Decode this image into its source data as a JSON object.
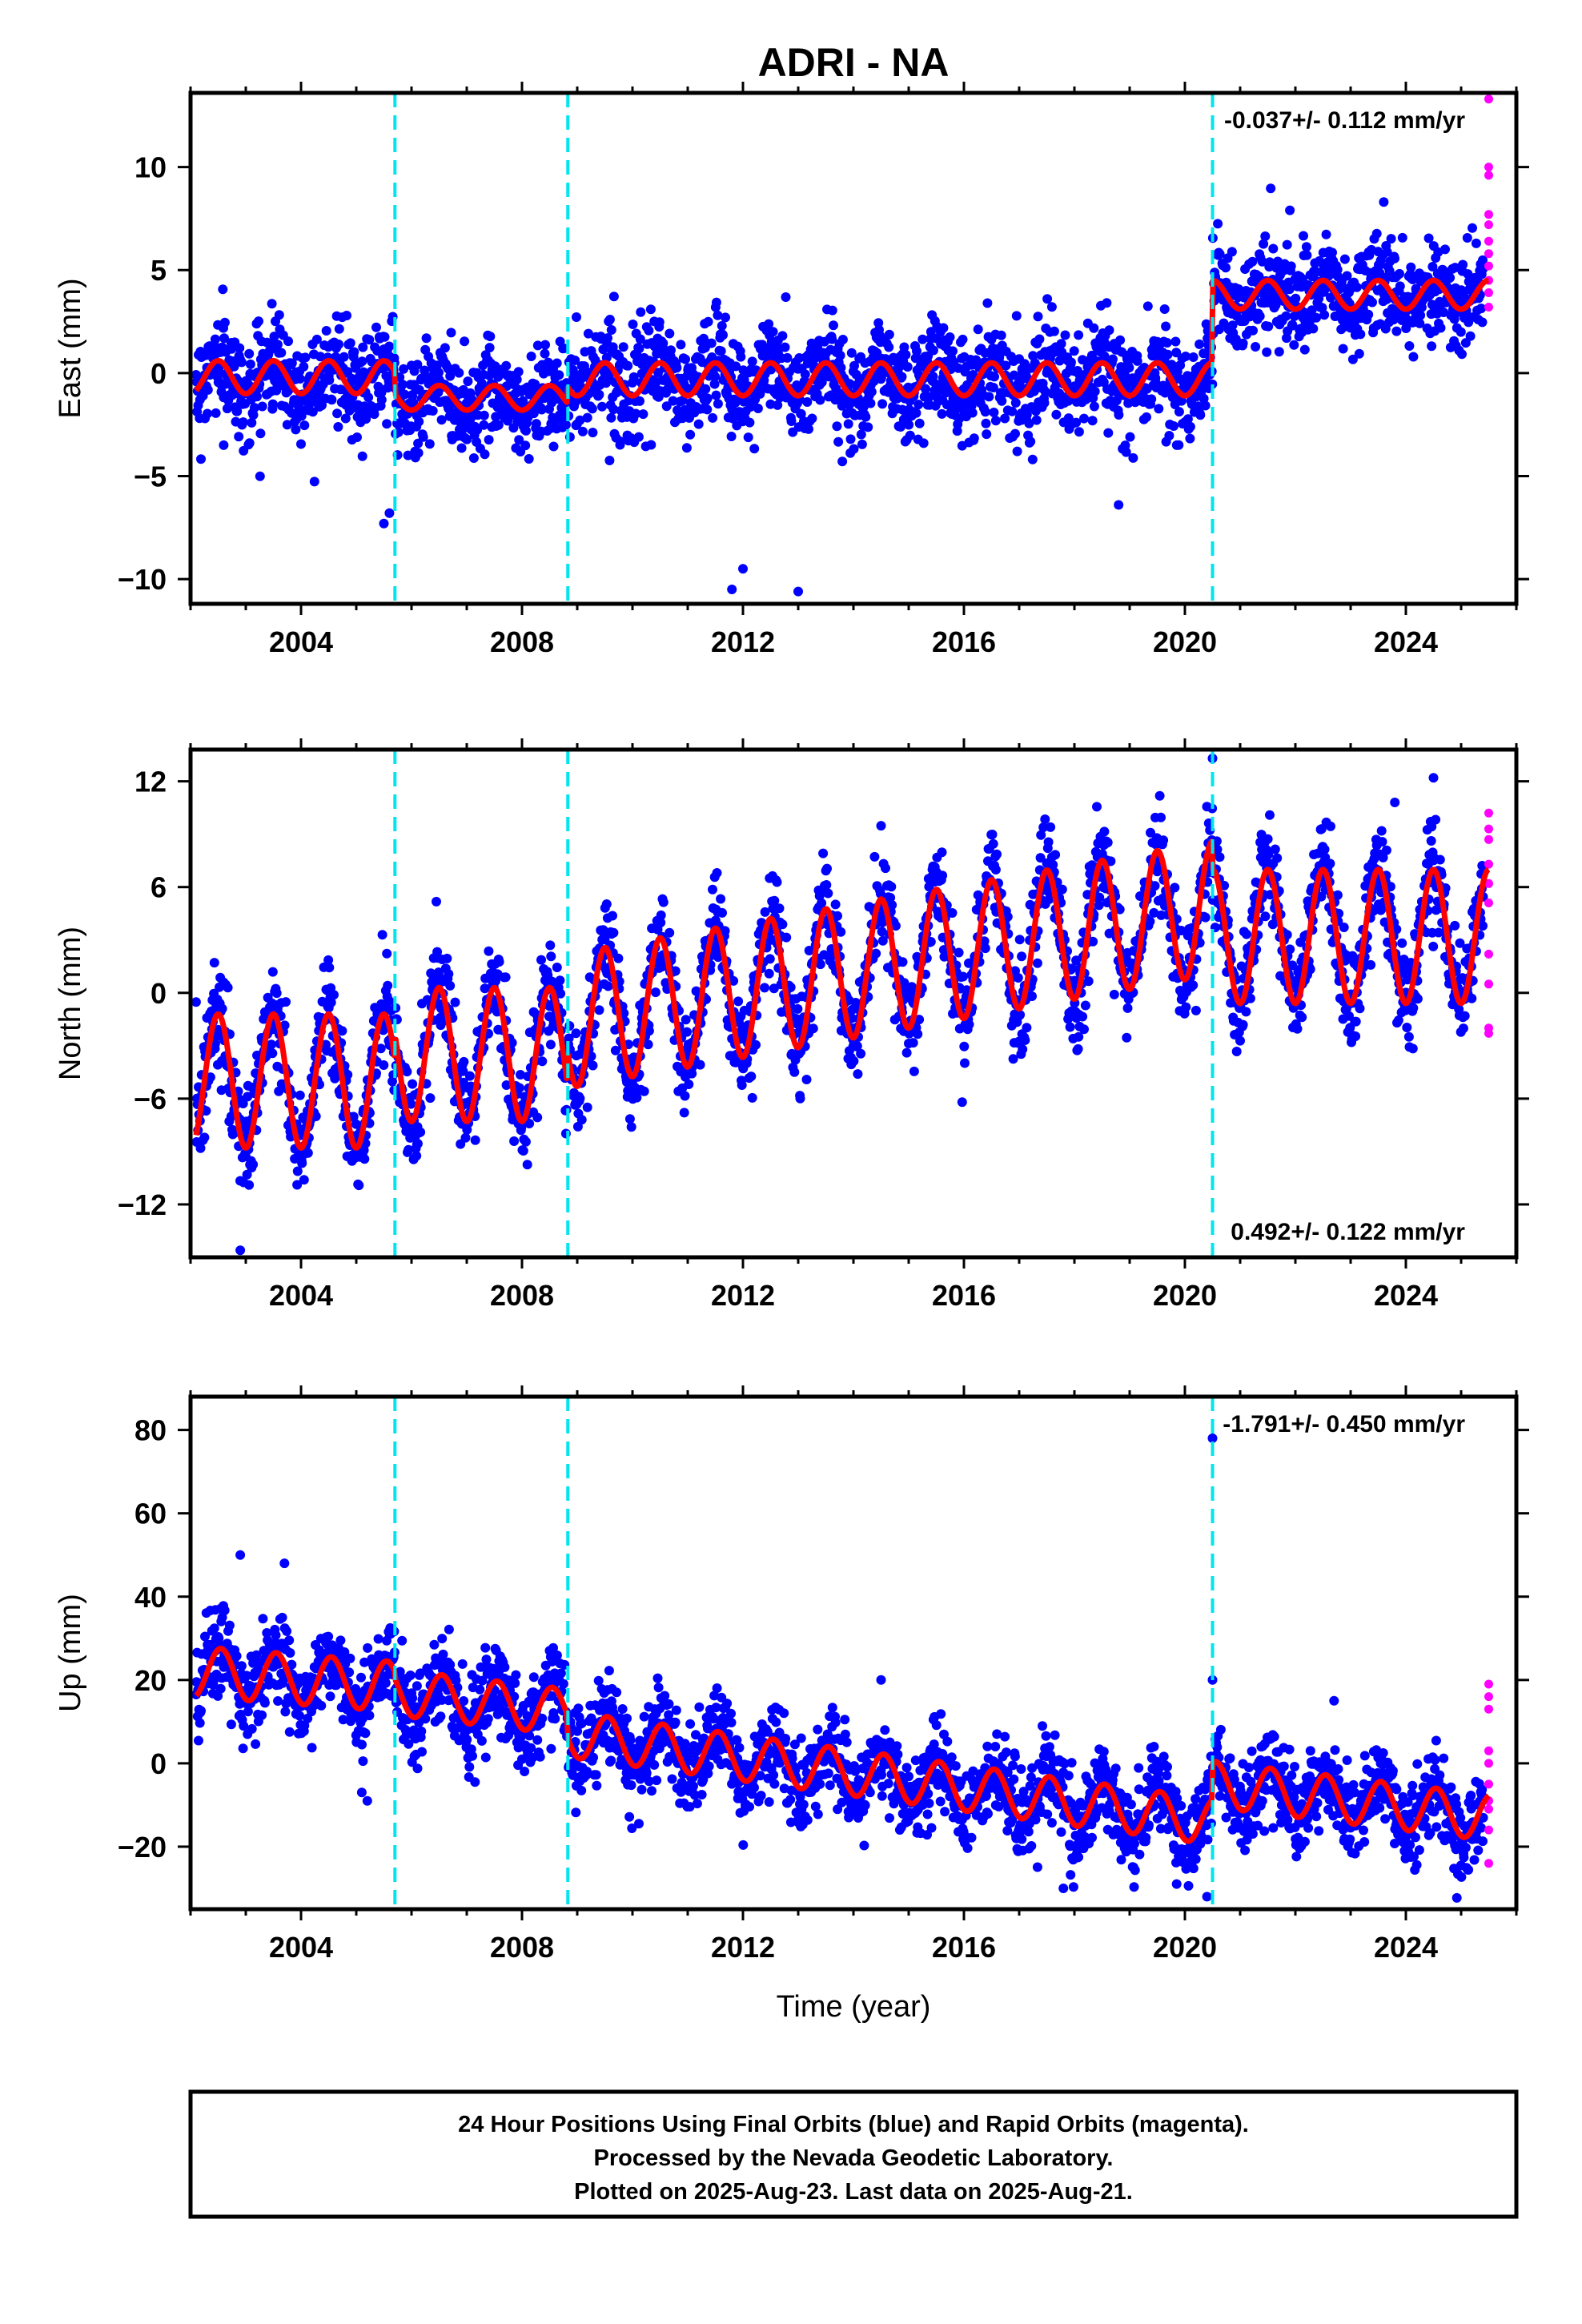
{
  "title": "ADRI - NA",
  "colors": {
    "final_orbits": "#0000ff",
    "rapid_orbits": "#ff00ff",
    "model_fit": "#ff0000",
    "offset_lines": "#00e5ee"
  },
  "chart_data": [
    {
      "type": "scatter",
      "panel": "east",
      "ylabel": "East (mm)",
      "rate_text": "-0.037+/- 0.112 mm/yr",
      "rate_position": "top-right",
      "xlim": [
        2002.0,
        2026.0
      ],
      "ylim": [
        -11.2,
        13.6
      ],
      "yticks": [
        10,
        5,
        0,
        -5,
        -10
      ],
      "ytick_labels": [
        "10",
        "5",
        "0",
        "−5",
        "−10"
      ],
      "xticks": [
        2004,
        2008,
        2012,
        2016,
        2020,
        2024
      ],
      "xtick_labels": [
        "2004",
        "2008",
        "2012",
        "2016",
        "2020",
        "2024"
      ],
      "offset_epochs": [
        2005.7,
        2008.83,
        2020.5
      ],
      "data_span": [
        2002.1,
        2025.4
      ],
      "series": [
        {
          "name": "Final Orbits (blue)",
          "kind": "daily positions",
          "scatter_sd": 1.2
        },
        {
          "name": "Rapid Orbits (magenta)",
          "kind": "daily positions",
          "x": [
            2025.5,
            2025.5,
            2025.5,
            2025.5,
            2025.5,
            2025.5,
            2025.5,
            2025.5,
            2025.5,
            2025.5,
            2025.5
          ],
          "y": [
            13.3,
            10.0,
            9.6,
            7.7,
            7.2,
            6.4,
            5.8,
            5.2,
            4.5,
            3.9,
            3.2
          ]
        },
        {
          "name": "Model fit",
          "segments": [
            {
              "start": 2002.1,
              "end": 2005.7,
              "offset": -0.2,
              "annual_amp": 0.8
            },
            {
              "start": 2005.7,
              "end": 2008.83,
              "offset": -1.2,
              "annual_amp": 0.6
            },
            {
              "start": 2008.83,
              "end": 2020.5,
              "offset": -0.3,
              "annual_amp": 0.8
            },
            {
              "start": 2020.5,
              "end": 2025.5,
              "offset": 3.8,
              "annual_amp": 0.7
            }
          ],
          "phase_peak": 0.5
        }
      ],
      "outliers": {
        "x": [
          2002.6,
          2005.5,
          2005.6,
          2011.8,
          2012.0,
          2013.0,
          2018.8,
          2021.9,
          2023.6
        ],
        "y": [
          -3.5,
          -7.3,
          -6.8,
          -10.5,
          -9.5,
          -10.6,
          -6.4,
          7.9,
          8.3
        ]
      }
    },
    {
      "type": "scatter",
      "panel": "north",
      "ylabel": "North (mm)",
      "rate_text": "0.492+/- 0.122 mm/yr",
      "rate_position": "bottom-right",
      "xlim": [
        2002.0,
        2026.0
      ],
      "ylim": [
        -15.0,
        13.8
      ],
      "yticks": [
        12,
        6,
        0,
        -6,
        -12
      ],
      "ytick_labels": [
        "12",
        "6",
        "0",
        "−6",
        "−12"
      ],
      "xticks": [
        2004,
        2008,
        2012,
        2016,
        2020,
        2024
      ],
      "xtick_labels": [
        "2004",
        "2008",
        "2012",
        "2016",
        "2020",
        "2024"
      ],
      "offset_epochs": [
        2005.7,
        2008.83,
        2020.5
      ],
      "data_span": [
        2002.1,
        2025.4
      ],
      "series": [
        {
          "name": "Final Orbits (blue)",
          "kind": "daily positions",
          "scatter_sd": 1.4
        },
        {
          "name": "Rapid Orbits (magenta)",
          "kind": "daily positions",
          "x": [
            2025.5,
            2025.5,
            2025.5,
            2025.5,
            2025.5,
            2025.5,
            2025.5,
            2025.5,
            2025.5,
            2025.5
          ],
          "y": [
            10.2,
            9.3,
            8.7,
            7.3,
            6.2,
            5.1,
            2.2,
            0.5,
            -2.0,
            -2.3
          ]
        },
        {
          "name": "Model fit",
          "segments": [
            {
              "start": 2002.1,
              "end": 2005.7,
              "offset": -5.0,
              "annual_amp": 3.8,
              "trend_mm_per_yr": 0.0
            },
            {
              "start": 2005.7,
              "end": 2008.83,
              "offset": -3.5,
              "annual_amp": 3.8,
              "trend_mm_per_yr": 0.0
            },
            {
              "start": 2008.83,
              "end": 2020.5,
              "offset": -1.6,
              "annual_amp": 3.8,
              "trend_mm_per_yr": 0.55
            },
            {
              "start": 2020.5,
              "end": 2025.5,
              "offset": 3.2,
              "annual_amp": 3.8,
              "trend_mm_per_yr": 0.0
            }
          ],
          "phase_peak": 0.5
        }
      ],
      "outliers": {
        "x": [
          2002.9,
          2020.5,
          2024.5,
          2023.8
        ],
        "y": [
          -14.6,
          13.3,
          12.2,
          10.8
        ]
      }
    },
    {
      "type": "scatter",
      "panel": "up",
      "ylabel": "Up (mm)",
      "xlabel": "Time (year)",
      "rate_text": "-1.791+/- 0.450 mm/yr",
      "rate_position": "top-right",
      "xlim": [
        2002.0,
        2026.0
      ],
      "ylim": [
        -35,
        88
      ],
      "yticks": [
        80,
        60,
        40,
        20,
        0,
        -20
      ],
      "ytick_labels": [
        "80",
        "60",
        "40",
        "20",
        "0",
        "−20"
      ],
      "xticks": [
        2004,
        2008,
        2012,
        2016,
        2020,
        2024
      ],
      "xtick_labels": [
        "2004",
        "2008",
        "2012",
        "2016",
        "2020",
        "2024"
      ],
      "offset_epochs": [
        2005.7,
        2008.83,
        2020.5
      ],
      "data_span": [
        2002.1,
        2025.4
      ],
      "series": [
        {
          "name": "Final Orbits (blue)",
          "kind": "daily positions",
          "scatter_sd": 5.0
        },
        {
          "name": "Rapid Orbits (magenta)",
          "kind": "daily positions",
          "x": [
            2025.5,
            2025.5,
            2025.5,
            2025.5,
            2025.5,
            2025.5,
            2025.5,
            2025.5,
            2025.5,
            2025.5
          ],
          "y": [
            19,
            16,
            13,
            3,
            0,
            -5,
            -9,
            -11,
            -16,
            -24
          ]
        },
        {
          "name": "Model fit",
          "segments": [
            {
              "start": 2002.1,
              "end": 2005.7,
              "offset": 22.0,
              "annual_amp": 6.0,
              "trend_mm_per_yr": -1.0
            },
            {
              "start": 2005.7,
              "end": 2008.83,
              "offset": 17.0,
              "annual_amp": 5.5,
              "trend_mm_per_yr": -1.5
            },
            {
              "start": 2008.83,
              "end": 2020.5,
              "offset": 7.0,
              "annual_amp": 5.5,
              "trend_mm_per_yr": -1.8
            },
            {
              "start": 2020.5,
              "end": 2025.5,
              "offset": -5.0,
              "annual_amp": 5.5,
              "trend_mm_per_yr": -1.6
            }
          ],
          "phase_peak": 0.55
        }
      ],
      "outliers": {
        "x": [
          2002.9,
          2003.7,
          2005.1,
          2005.2,
          2014.5,
          2017.8,
          2020.4,
          2020.5,
          2020.5,
          2022.7
        ],
        "y": [
          50,
          48,
          -7,
          -9,
          20,
          -30,
          -32,
          20,
          78,
          15
        ]
      }
    }
  ],
  "footer": {
    "line1": "24 Hour Positions Using Final Orbits (blue) and Rapid Orbits (magenta).",
    "line2": "Processed by the Nevada Geodetic Laboratory.",
    "line3": "Plotted on 2025-Aug-23. Last data on 2025-Aug-21."
  }
}
